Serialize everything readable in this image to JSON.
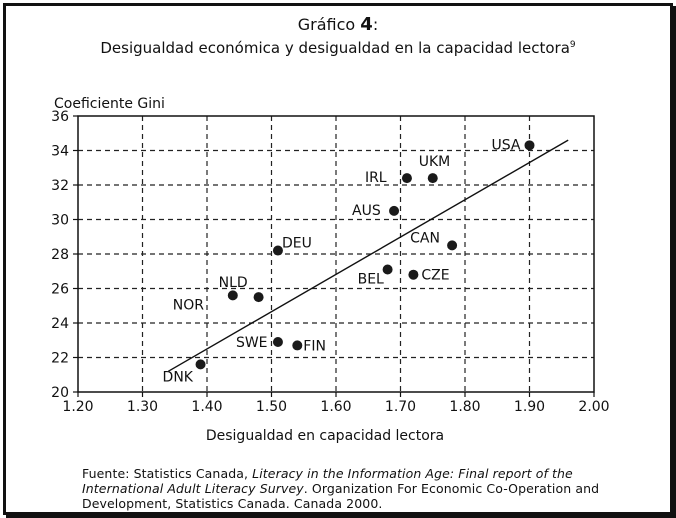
{
  "header": {
    "title_prefix": "Gráfico ",
    "title_number": "4",
    "title_suffix": ":",
    "subtitle": "Desigualdad económica y desigualdad en la capacidad lectora",
    "subtitle_note": "9"
  },
  "source": {
    "prefix": "Fuente: Statistics Canada, ",
    "italic": "Literacy  in the Information Age: Final report of the International Adult Literacy Survey",
    "suffix": ". Organization For Economic Co-Operation and Development, Statistics Canada. Canada 2000."
  },
  "chart_data": {
    "type": "scatter",
    "title": "Desigualdad económica y desigualdad en la capacidad lectora",
    "xlabel": "Desigualdad en capacidad lectora",
    "ylabel": "Coeficiente Gini",
    "xlim": [
      1.2,
      2.0
    ],
    "ylim": [
      20,
      36
    ],
    "x_ticks": [
      "1.20",
      "1.30",
      "1.40",
      "1.50",
      "1.60",
      "1.70",
      "1.80",
      "1.90",
      "2.00"
    ],
    "y_ticks": [
      "20",
      "22",
      "24",
      "26",
      "28",
      "30",
      "32",
      "34",
      "36"
    ],
    "grid": true,
    "grid_style": "dashed",
    "points": [
      {
        "label": "USA",
        "x": 1.9,
        "y": 34.3
      },
      {
        "label": "UKM",
        "x": 1.75,
        "y": 32.4
      },
      {
        "label": "IRL",
        "x": 1.71,
        "y": 32.4
      },
      {
        "label": "AUS",
        "x": 1.69,
        "y": 30.5
      },
      {
        "label": "CAN",
        "x": 1.78,
        "y": 28.5
      },
      {
        "label": "CZE",
        "x": 1.72,
        "y": 26.8
      },
      {
        "label": "BEL",
        "x": 1.68,
        "y": 27.1
      },
      {
        "label": "DEU",
        "x": 1.51,
        "y": 28.2
      },
      {
        "label": "NLD",
        "x": 1.48,
        "y": 25.5
      },
      {
        "label": "NOR",
        "x": 1.44,
        "y": 25.6
      },
      {
        "label": "SWE",
        "x": 1.51,
        "y": 22.9
      },
      {
        "label": "FIN",
        "x": 1.54,
        "y": 22.7
      },
      {
        "label": "DNK",
        "x": 1.39,
        "y": 21.6
      }
    ],
    "trendline": {
      "x": [
        1.34,
        1.96
      ],
      "y": [
        21.2,
        34.6
      ]
    },
    "colors": {
      "points": "#1a1a1a",
      "grid": "#222222",
      "axis": "#111111"
    }
  }
}
